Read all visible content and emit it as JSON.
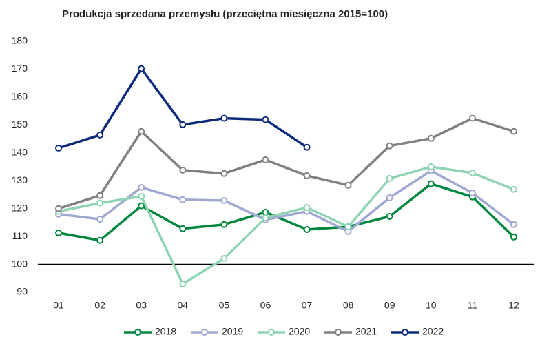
{
  "chart_data": {
    "type": "line",
    "title": "Produkcja sprzedana przemysłu (przeciętna miesięczna 2015=100)",
    "categories": [
      "01",
      "02",
      "03",
      "04",
      "05",
      "06",
      "07",
      "08",
      "09",
      "10",
      "11",
      "12"
    ],
    "series": [
      {
        "name": "2018",
        "color": "#00873e",
        "values": [
          111.3,
          108.6,
          121,
          112.8,
          114.3,
          118.7,
          112.5,
          113.5,
          117.2,
          128.9,
          124.2,
          109.8
        ]
      },
      {
        "name": "2019",
        "color": "#9ea8d2",
        "values": [
          118,
          116.2,
          127.6,
          123.2,
          122.9,
          116,
          119,
          111.8,
          123.9,
          133.6,
          125.6,
          114.3
        ]
      },
      {
        "name": "2020",
        "color": "#8fd4b2",
        "values": [
          119,
          122,
          124.4,
          93,
          102.1,
          116.7,
          120.4,
          113.5,
          130.8,
          135,
          132.8,
          126.9
        ]
      },
      {
        "name": "2021",
        "color": "#808080",
        "values": [
          120,
          124.7,
          147.7,
          133.8,
          132.6,
          137.5,
          131.8,
          128.4,
          142.5,
          145.2,
          152.4,
          147.7
        ]
      },
      {
        "name": "2022",
        "color": "#0b2a7c",
        "values": [
          141.7,
          146.4,
          170.2,
          150.1,
          152.4,
          151.9,
          142,
          null,
          null,
          null,
          null,
          null
        ]
      }
    ],
    "ylim": [
      90,
      180
    ],
    "yticks": [
      90,
      100,
      110,
      120,
      130,
      140,
      150,
      160,
      170,
      180
    ],
    "reference_line": 100,
    "grid": false,
    "legend": "bottom"
  }
}
